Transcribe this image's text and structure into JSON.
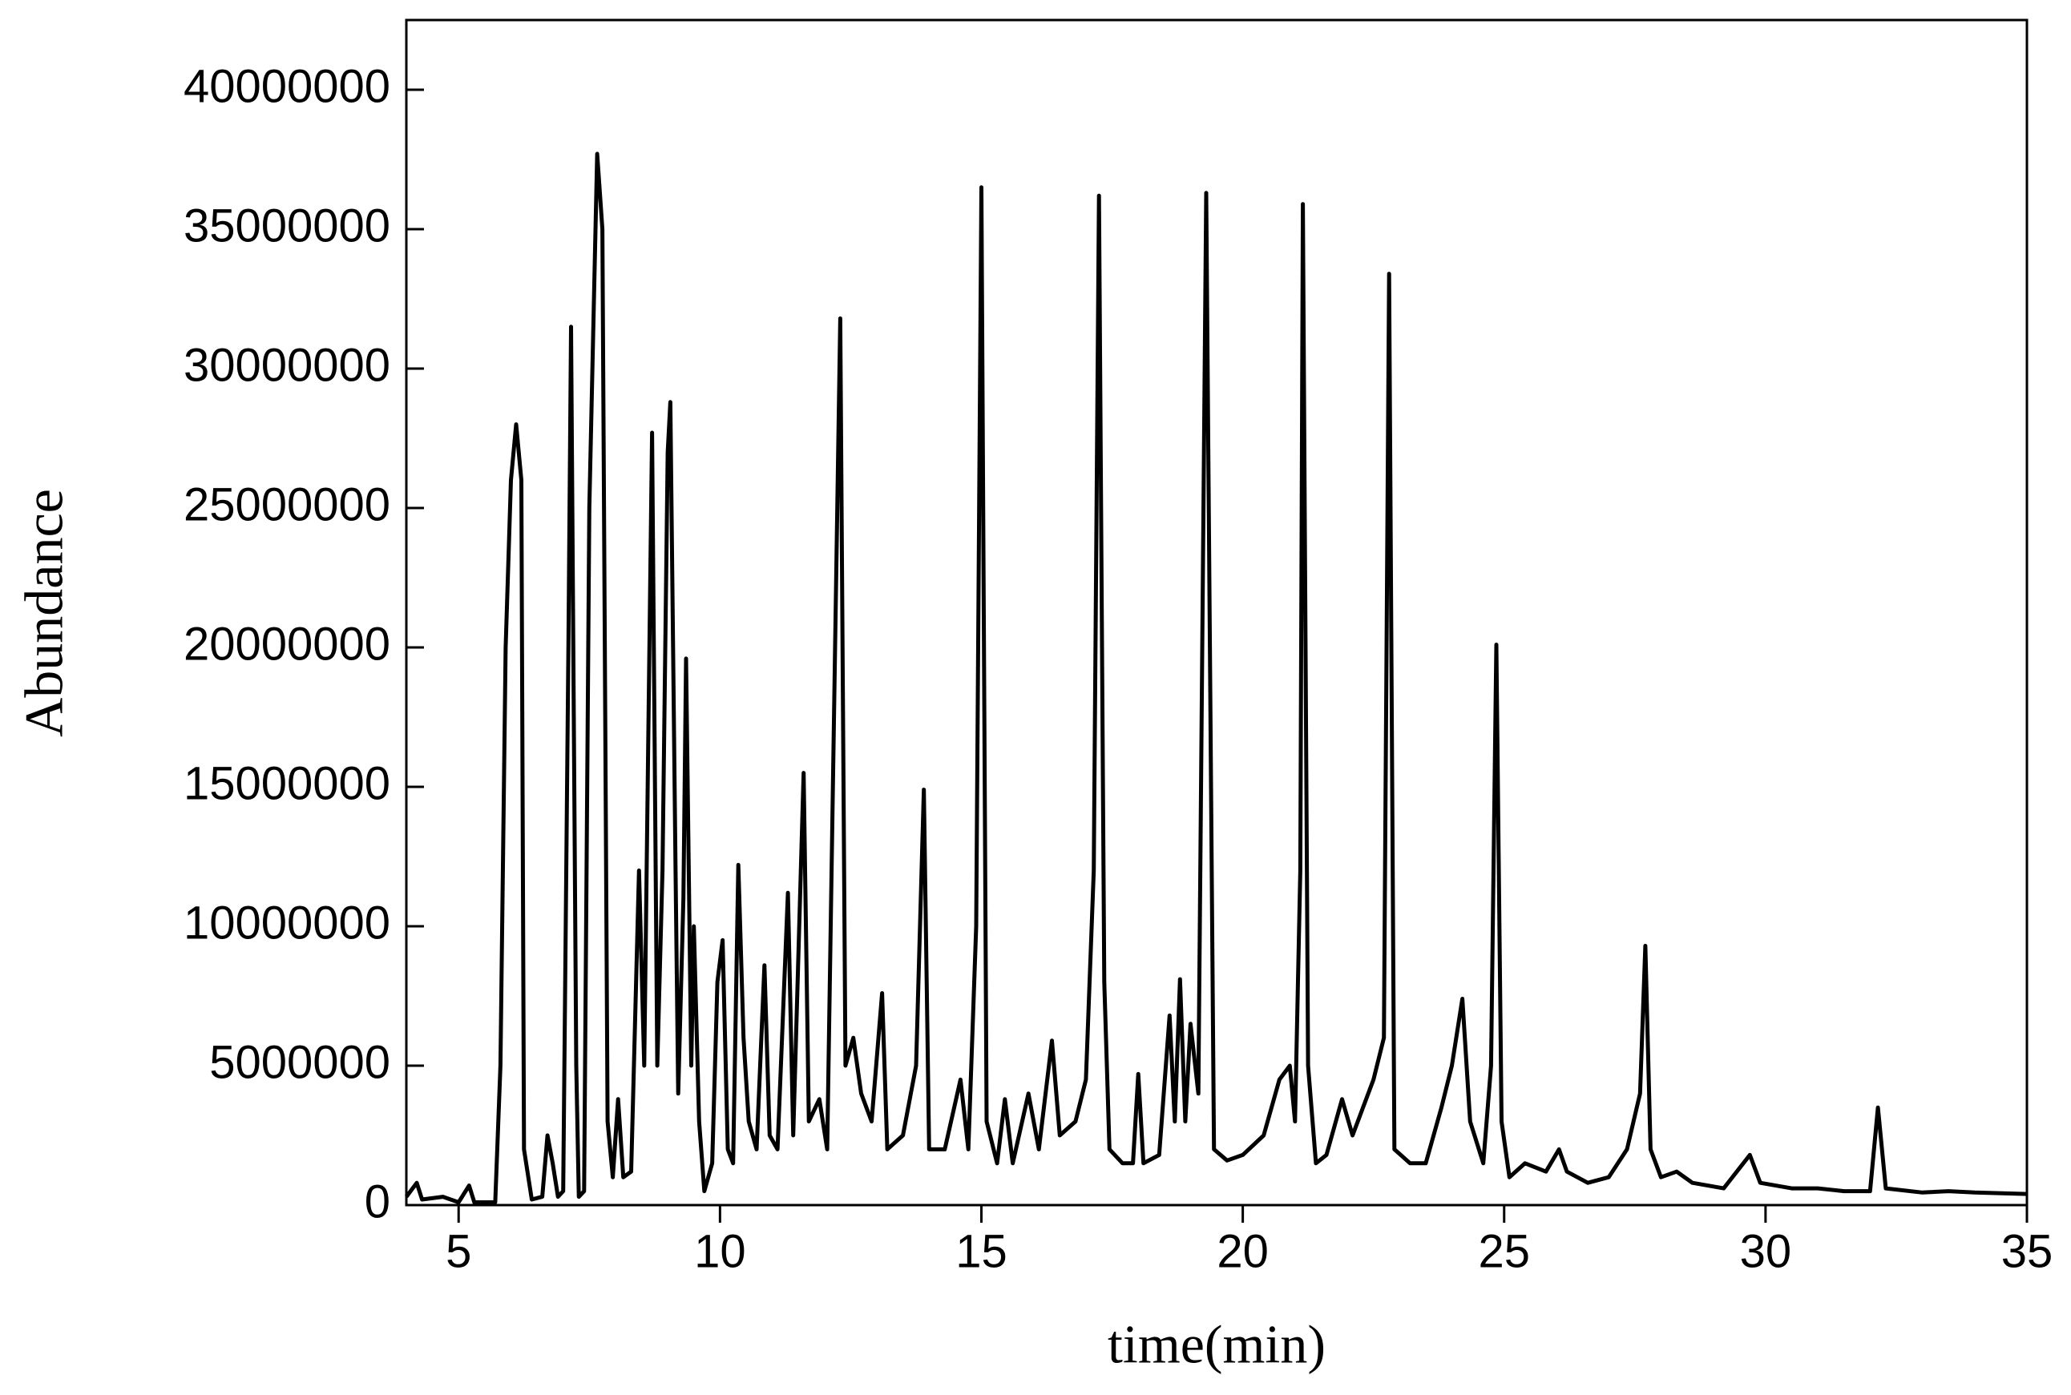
{
  "chart_data": {
    "type": "line",
    "x_label": "time(min)",
    "y_label": "Abundance",
    "color": "#000000",
    "xlim": [
      4,
      35
    ],
    "xticks": [
      5,
      10,
      15,
      20,
      25,
      30,
      35
    ],
    "ylim": [
      0,
      42500000
    ],
    "yticks": [
      0,
      5000000,
      10000000,
      15000000,
      20000000,
      25000000,
      30000000,
      35000000,
      40000000
    ],
    "x": [
      4.0,
      4.2,
      4.3,
      4.7,
      5.0,
      5.2,
      5.3,
      5.7,
      5.8,
      5.9,
      6.0,
      6.1,
      6.2,
      6.25,
      6.4,
      6.6,
      6.7,
      6.8,
      6.9,
      7.0,
      7.1,
      7.15,
      7.25,
      7.3,
      7.4,
      7.5,
      7.65,
      7.75,
      7.85,
      7.95,
      8.05,
      8.15,
      8.3,
      8.45,
      8.55,
      8.7,
      8.8,
      8.9,
      9.0,
      9.05,
      9.15,
      9.2,
      9.3,
      9.35,
      9.45,
      9.5,
      9.6,
      9.7,
      9.85,
      9.95,
      10.05,
      10.15,
      10.25,
      10.35,
      10.45,
      10.55,
      10.7,
      10.85,
      10.95,
      11.1,
      11.3,
      11.4,
      11.6,
      11.7,
      11.9,
      12.05,
      12.3,
      12.4,
      12.55,
      12.7,
      12.9,
      13.1,
      13.2,
      13.5,
      13.75,
      13.9,
      14.0,
      14.3,
      14.6,
      14.75,
      14.9,
      15.0,
      15.1,
      15.3,
      15.45,
      15.6,
      15.9,
      16.1,
      16.35,
      16.5,
      16.8,
      17.0,
      17.15,
      17.25,
      17.35,
      17.45,
      17.7,
      17.9,
      18.0,
      18.1,
      18.4,
      18.6,
      18.7,
      18.8,
      18.9,
      19.0,
      19.15,
      19.3,
      19.45,
      19.7,
      20.0,
      20.4,
      20.7,
      20.9,
      21.0,
      21.1,
      21.15,
      21.25,
      21.4,
      21.6,
      21.9,
      22.1,
      22.5,
      22.7,
      22.8,
      22.9,
      23.2,
      23.5,
      23.8,
      24.0,
      24.2,
      24.35,
      24.6,
      24.75,
      24.85,
      24.95,
      25.1,
      25.4,
      25.8,
      26.05,
      26.2,
      26.6,
      27.0,
      27.35,
      27.6,
      27.7,
      27.8,
      28.0,
      28.3,
      28.6,
      29.2,
      29.7,
      29.9,
      30.5,
      31.0,
      31.5,
      32.0,
      32.15,
      32.3,
      33.0,
      33.5,
      34.0,
      35.0
    ],
    "values": [
      300000,
      800000,
      200000,
      300000,
      100000,
      700000,
      100000,
      100000,
      5000000,
      20000000,
      26000000,
      28000000,
      26000000,
      2000000,
      200000,
      300000,
      2500000,
      1500000,
      300000,
      500000,
      20000000,
      31500000,
      5000000,
      300000,
      500000,
      25000000,
      37700000,
      35000000,
      3000000,
      1000000,
      3800000,
      1000000,
      1200000,
      12000000,
      5000000,
      27700000,
      5000000,
      12000000,
      27000000,
      28800000,
      12000000,
      4000000,
      11000000,
      19600000,
      5000000,
      10000000,
      3000000,
      500000,
      1500000,
      8000000,
      9500000,
      2000000,
      1500000,
      12200000,
      6000000,
      3000000,
      2000000,
      8600000,
      2500000,
      2000000,
      11200000,
      2500000,
      15500000,
      3000000,
      3800000,
      2000000,
      31800000,
      5000000,
      6000000,
      4000000,
      3000000,
      7600000,
      2000000,
      2500000,
      5000000,
      14900000,
      2000000,
      2000000,
      4500000,
      2000000,
      10000000,
      36500000,
      3000000,
      1500000,
      3800000,
      1500000,
      4000000,
      2000000,
      5900000,
      2500000,
      3000000,
      4500000,
      12000000,
      36200000,
      8000000,
      2000000,
      1500000,
      1500000,
      4700000,
      1500000,
      1800000,
      6800000,
      3000000,
      8100000,
      3000000,
      6500000,
      4000000,
      36300000,
      2000000,
      1600000,
      1800000,
      2500000,
      4500000,
      5000000,
      3000000,
      12000000,
      35900000,
      5000000,
      1500000,
      1800000,
      3800000,
      2500000,
      4500000,
      6000000,
      33400000,
      2000000,
      1500000,
      1500000,
      3500000,
      5000000,
      7400000,
      3000000,
      1500000,
      5000000,
      20100000,
      3000000,
      1000000,
      1500000,
      1200000,
      2000000,
      1200000,
      800000,
      1000000,
      2000000,
      4000000,
      9300000,
      2000000,
      1000000,
      1200000,
      800000,
      600000,
      1800000,
      800000,
      600000,
      600000,
      500000,
      500000,
      3500000,
      600000,
      450000,
      500000,
      450000,
      400000
    ]
  }
}
